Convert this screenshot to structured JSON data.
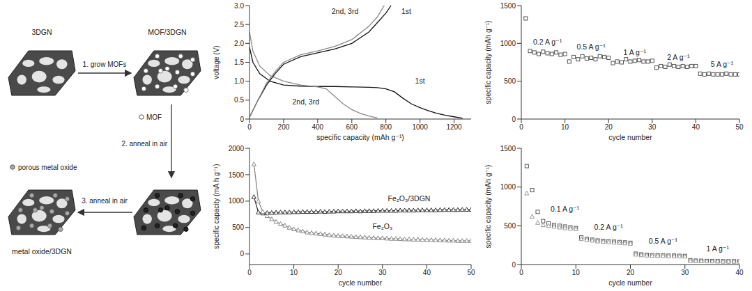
{
  "diagram": {
    "stage_labels": {
      "start": "3DGN",
      "mof": "MOF/3DGN",
      "product": "metal oxide/3DGN"
    },
    "steps": [
      "1. grow MOFs",
      "2. anneal in air",
      "3. anneal in air"
    ],
    "markers": {
      "mof": "MOF",
      "oxide": "porous metal oxide"
    }
  },
  "chart_data": [
    {
      "type": "line",
      "x_label": "specific capacity (mAh g⁻¹)",
      "y_label": "voltage (V)",
      "xlim": [
        0,
        1300
      ],
      "xticks": [
        0,
        200,
        400,
        600,
        800,
        1000,
        1200
      ],
      "ylim": [
        0,
        3
      ],
      "yticks": [
        0,
        0.5,
        {
          "value": 1,
          "label": "1.0"
        },
        1.5,
        {
          "value": 2,
          "label": "2.0"
        },
        2.5,
        {
          "value": 3,
          "label": "3.0"
        }
      ],
      "grid": false,
      "series": [
        {
          "color": "#111111",
          "line_style": "solid",
          "marker": "none",
          "x": [
            0,
            20,
            60,
            120,
            200,
            300,
            400,
            500,
            600,
            700,
            750,
            800,
            850,
            900,
            950,
            1000,
            1050,
            1100,
            1150,
            1200,
            1250
          ],
          "values": [
            1.9,
            1.5,
            1.2,
            1.0,
            0.9,
            0.87,
            0.86,
            0.86,
            0.85,
            0.84,
            0.83,
            0.8,
            0.72,
            0.55,
            0.4,
            0.3,
            0.22,
            0.15,
            0.1,
            0.06,
            0.02
          ]
        },
        {
          "color": "#888888",
          "line_style": "solid",
          "marker": "none",
          "x": [
            0,
            20,
            60,
            120,
            200,
            300,
            400,
            450,
            500,
            550,
            600,
            650,
            700,
            750
          ],
          "values": [
            2.3,
            1.8,
            1.4,
            1.15,
            1.0,
            0.9,
            0.85,
            0.8,
            0.6,
            0.4,
            0.25,
            0.15,
            0.08,
            0.03
          ]
        },
        {
          "color": "#111111",
          "line_style": "solid",
          "marker": "none",
          "x": [
            0,
            50,
            100,
            150,
            200,
            300,
            400,
            500,
            600,
            700,
            750,
            800,
            830
          ],
          "values": [
            0.05,
            0.5,
            0.9,
            1.2,
            1.45,
            1.65,
            1.75,
            1.85,
            2.0,
            2.3,
            2.55,
            2.8,
            3.0
          ]
        },
        {
          "color": "#888888",
          "line_style": "solid",
          "marker": "none",
          "x": [
            0,
            50,
            100,
            150,
            200,
            300,
            400,
            500,
            600,
            700,
            750,
            790
          ],
          "values": [
            0.05,
            0.5,
            0.95,
            1.25,
            1.5,
            1.7,
            1.8,
            1.92,
            2.1,
            2.45,
            2.7,
            3.0
          ]
        }
      ],
      "annotations": [
        {
          "text": "1st",
          "x": 920,
          "y": 2.85
        },
        {
          "text": "2nd, 3rd",
          "x": 560,
          "y": 2.85
        },
        {
          "text": "1st",
          "x": 1000,
          "y": 1.0
        },
        {
          "text": "2nd, 3rd",
          "x": 330,
          "y": 0.45
        }
      ]
    },
    {
      "type": "scatter",
      "x_label": "cycle number",
      "y_label": "specific capacity (mAh g⁻¹)",
      "xlim": [
        0,
        50
      ],
      "xticks": [
        0,
        10,
        20,
        30,
        40,
        50
      ],
      "ylim": [
        0,
        1500
      ],
      "yticks": [
        0,
        500,
        1000,
        1500
      ],
      "grid": false,
      "x": [
        1,
        2,
        3,
        4,
        5,
        6,
        7,
        8,
        9,
        10,
        11,
        12,
        13,
        14,
        15,
        16,
        17,
        18,
        19,
        20,
        21,
        22,
        23,
        24,
        25,
        26,
        27,
        28,
        29,
        30,
        31,
        32,
        33,
        34,
        35,
        36,
        37,
        38,
        39,
        40,
        41,
        42,
        43,
        44,
        45,
        46,
        47,
        48,
        49,
        50
      ],
      "series": [
        {
          "color": "#555555",
          "line_style": "none",
          "marker": "square",
          "values": [
            1330,
            900,
            880,
            860,
            890,
            870,
            860,
            880,
            850,
            860,
            760,
            820,
            790,
            830,
            800,
            810,
            790,
            830,
            820,
            810,
            740,
            760,
            750,
            790,
            760,
            770,
            780,
            760,
            760,
            770,
            680,
            700,
            690,
            720,
            700,
            690,
            700,
            690,
            700,
            700,
            600,
            590,
            600,
            590,
            590,
            590,
            600,
            590,
            590,
            590
          ]
        }
      ],
      "annotations": [
        {
          "text": "0.2 A g⁻¹",
          "x": 6,
          "y": 1020
        },
        {
          "text": "0.5 A g⁻¹",
          "x": 16,
          "y": 950
        },
        {
          "text": "1 A g⁻¹",
          "x": 26,
          "y": 880
        },
        {
          "text": "2 A g⁻¹",
          "x": 36,
          "y": 820
        },
        {
          "text": "5 A g⁻¹",
          "x": 46,
          "y": 720
        }
      ]
    },
    {
      "type": "line",
      "x_label": "cycle number",
      "y_label": "specific capacity (mA h g⁻¹)",
      "xlim": [
        0,
        50
      ],
      "xticks": [
        0,
        10,
        20,
        30,
        40,
        50
      ],
      "ylim": [
        -200,
        2000
      ],
      "yticks": [
        0,
        500,
        1000,
        1500,
        2000
      ],
      "grid": false,
      "x": [
        1,
        2,
        3,
        4,
        5,
        6,
        7,
        8,
        9,
        10,
        11,
        12,
        13,
        14,
        15,
        16,
        17,
        18,
        19,
        20,
        21,
        22,
        23,
        24,
        25,
        26,
        27,
        28,
        29,
        30,
        31,
        32,
        33,
        34,
        35,
        36,
        37,
        38,
        39,
        40,
        41,
        42,
        43,
        44,
        45,
        46,
        47,
        48,
        49,
        50
      ],
      "series": [
        {
          "color": "#333333",
          "line_style": "solid",
          "marker": "triangle",
          "values": [
            1080,
            790,
            770,
            780,
            780,
            785,
            790,
            790,
            790,
            795,
            795,
            800,
            800,
            800,
            800,
            805,
            800,
            805,
            805,
            810,
            810,
            810,
            810,
            815,
            810,
            815,
            815,
            815,
            820,
            820,
            820,
            820,
            820,
            825,
            825,
            825,
            825,
            830,
            830,
            830,
            830,
            830,
            835,
            835,
            835,
            835,
            835,
            840,
            840,
            840
          ]
        },
        {
          "color": "#888888",
          "line_style": "solid",
          "marker": "triangle",
          "values": [
            1700,
            1000,
            800,
            720,
            660,
            610,
            570,
            540,
            500,
            470,
            450,
            430,
            410,
            400,
            390,
            380,
            370,
            360,
            350,
            345,
            340,
            335,
            330,
            325,
            320,
            315,
            310,
            305,
            300,
            300,
            295,
            290,
            290,
            285,
            280,
            280,
            275,
            275,
            270,
            270,
            265,
            265,
            260,
            260,
            255,
            255,
            250,
            250,
            250,
            250
          ]
        }
      ],
      "annotations": [
        {
          "text": "Fe₂O₃/3DGN",
          "x": 36,
          "y": 1050
        },
        {
          "text": "Fe₂O₃",
          "x": 30,
          "y": 520
        }
      ]
    },
    {
      "type": "scatter",
      "x_label": "cycle number",
      "y_label": "specific capacity (mAh g⁻¹)",
      "xlim": [
        0,
        40
      ],
      "xticks": [
        0,
        10,
        20,
        30,
        40
      ],
      "ylim": [
        0,
        1500
      ],
      "yticks": [
        0,
        500,
        1000,
        1500
      ],
      "grid": false,
      "x": [
        1,
        2,
        3,
        4,
        5,
        6,
        7,
        8,
        9,
        10,
        11,
        12,
        13,
        14,
        15,
        16,
        17,
        18,
        19,
        20,
        21,
        22,
        23,
        24,
        25,
        26,
        27,
        28,
        29,
        30,
        31,
        32,
        33,
        34,
        35,
        36,
        37,
        38,
        39,
        40
      ],
      "series": [
        {
          "color": "#555555",
          "line_style": "none",
          "marker": "square",
          "values": [
            1270,
            960,
            680,
            560,
            530,
            510,
            500,
            490,
            480,
            470,
            350,
            330,
            320,
            310,
            305,
            300,
            295,
            290,
            285,
            280,
            140,
            130,
            125,
            120,
            120,
            118,
            115,
            115,
            112,
            110,
            55,
            50,
            48,
            46,
            45,
            44,
            43,
            42,
            42,
            41
          ]
        },
        {
          "color": "#999999",
          "line_style": "none",
          "marker": "triangle",
          "values": [
            920,
            620,
            540,
            510,
            500,
            490,
            480,
            470,
            465,
            460,
            330,
            320,
            310,
            300,
            295,
            290,
            285,
            280,
            275,
            270,
            130,
            122,
            118,
            115,
            113,
            112,
            110,
            108,
            106,
            105,
            48,
            46,
            44,
            43,
            42,
            41,
            40,
            40,
            39,
            38
          ]
        }
      ],
      "annotations": [
        {
          "text": "0.1 A g⁻¹",
          "x": 8,
          "y": 720
        },
        {
          "text": "0.2 A g⁻¹",
          "x": 16,
          "y": 480
        },
        {
          "text": "0.5 A g⁻¹",
          "x": 26,
          "y": 300
        },
        {
          "text": "1 A g⁻¹",
          "x": 36,
          "y": 200
        }
      ]
    }
  ]
}
